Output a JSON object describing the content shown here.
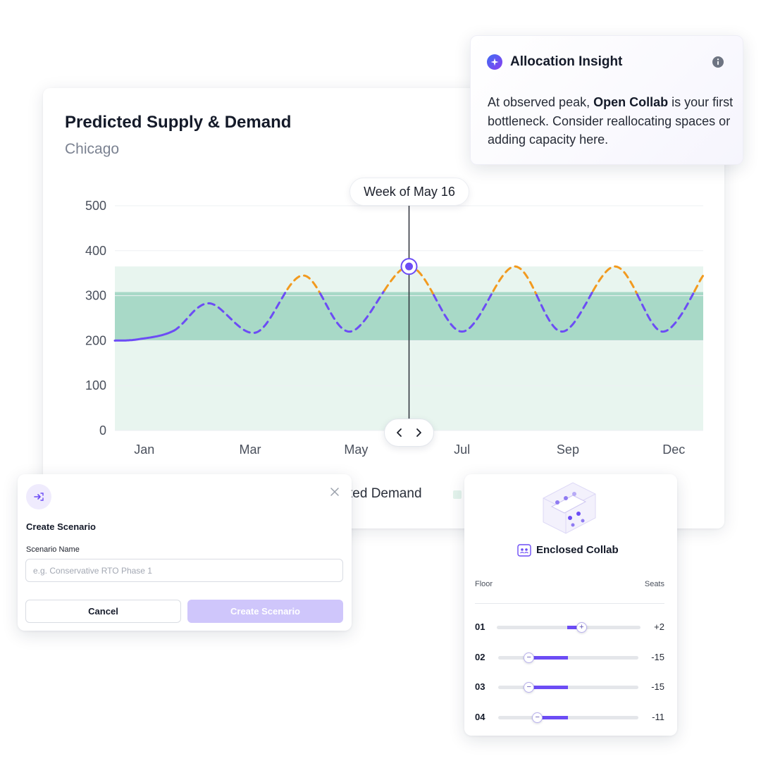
{
  "main": {
    "title": "Predicted Supply & Demand",
    "subtitle": "Chicago",
    "week_label": "Week of May 16",
    "legend_partial": "ted Demand"
  },
  "chart_data": {
    "type": "line",
    "x_ticks": [
      "Jan",
      "Mar",
      "May",
      "Jul",
      "Sep",
      "Dec"
    ],
    "y_ticks": [
      "0",
      "100",
      "200",
      "300",
      "400",
      "500"
    ],
    "ylim": [
      0,
      500
    ],
    "grid": true,
    "bands": [
      {
        "from": 0,
        "to": 365,
        "color": "#e8f5ef"
      },
      {
        "from": 200,
        "to": 308,
        "color": "#a8d9c7"
      }
    ],
    "demand": {
      "actual_color": "#6c4cf5",
      "forecast_color": "#6c4cf5",
      "over_capacity_color": "#f29a1f",
      "points": [
        {
          "x": 0.0,
          "y": 200
        },
        {
          "x": 0.04,
          "y": 203
        },
        {
          "x": 0.1,
          "y": 222
        },
        {
          "x": 0.16,
          "y": 283
        },
        {
          "x": 0.24,
          "y": 218
        },
        {
          "x": 0.32,
          "y": 345
        },
        {
          "x": 0.4,
          "y": 220
        },
        {
          "x": 0.5,
          "y": 365
        },
        {
          "x": 0.59,
          "y": 220
        },
        {
          "x": 0.68,
          "y": 365
        },
        {
          "x": 0.76,
          "y": 220
        },
        {
          "x": 0.85,
          "y": 365
        },
        {
          "x": 0.93,
          "y": 220
        },
        {
          "x": 1.0,
          "y": 345
        }
      ],
      "actual_until_index": 2,
      "highlight_index": 7
    }
  },
  "insight": {
    "title": "Allocation Insight",
    "body_pre": "At observed peak, ",
    "body_bold": "Open Collab",
    "body_post": " is your first bottleneck. Consider reallocating spaces or adding capacity here."
  },
  "scenario": {
    "title": "Create Scenario",
    "name_label": "Scenario Name",
    "name_placeholder": "e.g. Conservative RTO Phase 1",
    "cancel_label": "Cancel",
    "create_label": "Create Scenario"
  },
  "floor_panel": {
    "room_title": "Enclosed Collab",
    "col_floor": "Floor",
    "col_seats": "Seats",
    "rows": [
      {
        "floor": "01",
        "value": "+2",
        "thumb": 0.59,
        "fill_from": 0.49,
        "fill_to": 0.59,
        "dir": "plus"
      },
      {
        "floor": "02",
        "value": "-15",
        "thumb": 0.22,
        "fill_from": 0.22,
        "fill_to": 0.5,
        "dir": "minus"
      },
      {
        "floor": "03",
        "value": "-15",
        "thumb": 0.22,
        "fill_from": 0.22,
        "fill_to": 0.5,
        "dir": "minus"
      },
      {
        "floor": "04",
        "value": "-11",
        "thumb": 0.28,
        "fill_from": 0.28,
        "fill_to": 0.5,
        "dir": "minus"
      }
    ]
  }
}
